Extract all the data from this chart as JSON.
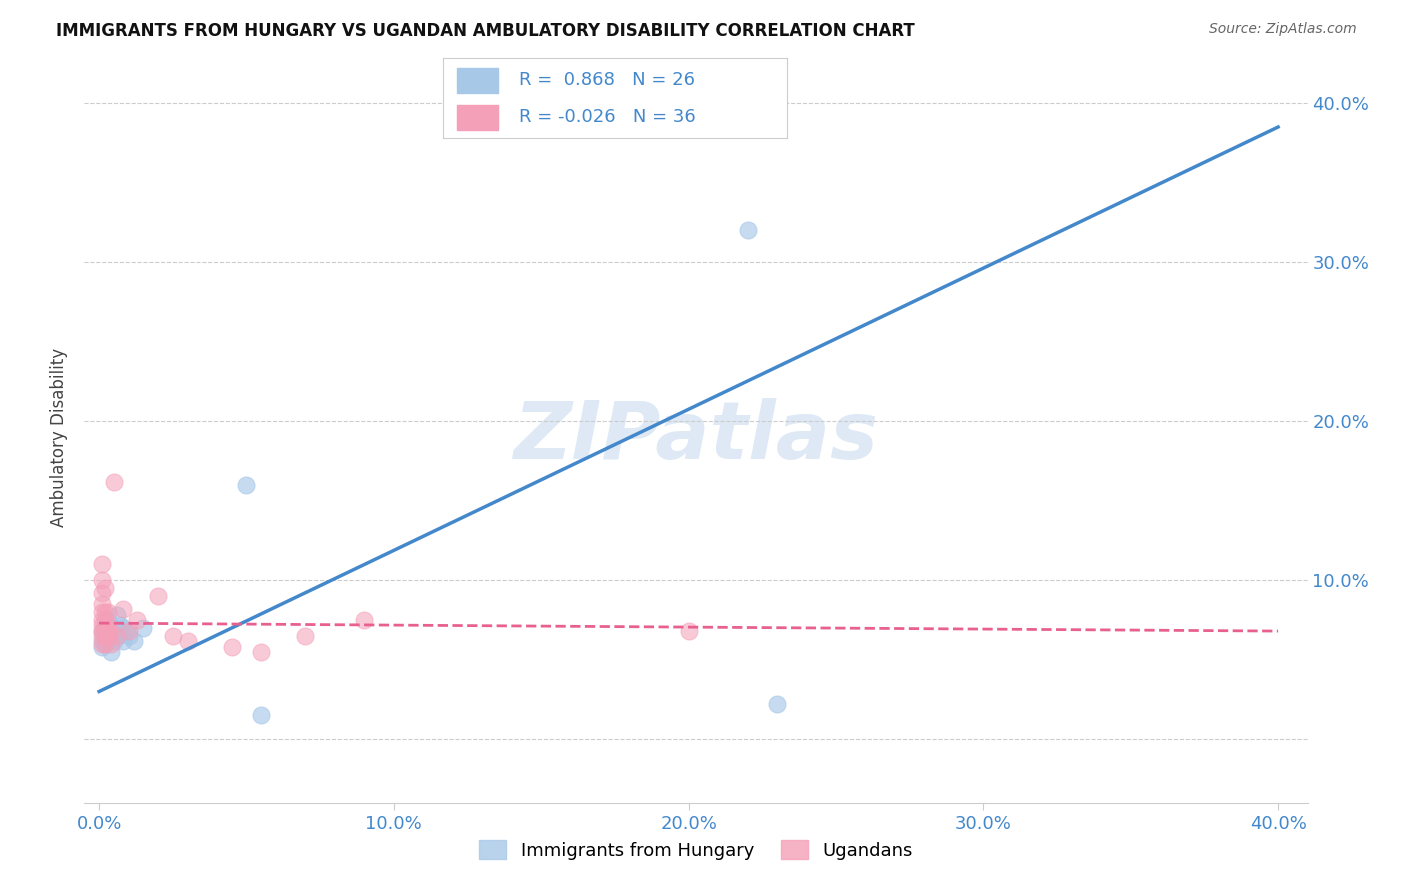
{
  "title": "IMMIGRANTS FROM HUNGARY VS UGANDAN AMBULATORY DISABILITY CORRELATION CHART",
  "source": "Source: ZipAtlas.com",
  "ylabel": "Ambulatory Disability",
  "legend1_label": "Immigrants from Hungary",
  "legend2_label": "Ugandans",
  "R_hungary": 0.868,
  "N_hungary": 26,
  "R_uganda": -0.026,
  "N_uganda": 36,
  "watermark": "ZIPatlas",
  "blue_color": "#a8c8e8",
  "pink_color": "#f4a0b8",
  "blue_line_color": "#4488cc",
  "pink_line_color": "#e86090",
  "blue_line_x0": 0.0,
  "blue_line_y0": 0.03,
  "blue_line_x1": 0.4,
  "blue_line_y1": 0.385,
  "pink_line_x0": 0.0,
  "pink_line_y0": 0.073,
  "pink_line_x1": 0.4,
  "pink_line_y1": 0.068,
  "hungary_x": [
    0.001,
    0.001,
    0.001,
    0.002,
    0.002,
    0.002,
    0.002,
    0.003,
    0.003,
    0.004,
    0.004,
    0.005,
    0.005,
    0.006,
    0.006,
    0.007,
    0.008,
    0.008,
    0.009,
    0.01,
    0.012,
    0.015,
    0.05,
    0.055,
    0.22,
    0.23
  ],
  "hungary_y": [
    0.062,
    0.068,
    0.058,
    0.07,
    0.072,
    0.065,
    0.06,
    0.075,
    0.068,
    0.065,
    0.055,
    0.07,
    0.062,
    0.078,
    0.065,
    0.072,
    0.07,
    0.062,
    0.068,
    0.065,
    0.062,
    0.07,
    0.16,
    0.015,
    0.32,
    0.022
  ],
  "uganda_x": [
    0.001,
    0.001,
    0.001,
    0.001,
    0.001,
    0.001,
    0.001,
    0.001,
    0.001,
    0.001,
    0.002,
    0.002,
    0.002,
    0.002,
    0.002,
    0.002,
    0.002,
    0.003,
    0.003,
    0.003,
    0.003,
    0.004,
    0.004,
    0.005,
    0.006,
    0.008,
    0.01,
    0.013,
    0.02,
    0.025,
    0.03,
    0.045,
    0.055,
    0.07,
    0.09,
    0.2
  ],
  "uganda_y": [
    0.075,
    0.068,
    0.085,
    0.08,
    0.065,
    0.06,
    0.092,
    0.1,
    0.11,
    0.072,
    0.095,
    0.068,
    0.08,
    0.075,
    0.065,
    0.07,
    0.06,
    0.072,
    0.065,
    0.068,
    0.08,
    0.06,
    0.068,
    0.162,
    0.065,
    0.082,
    0.068,
    0.075,
    0.09,
    0.065,
    0.062,
    0.058,
    0.055,
    0.065,
    0.075,
    0.068
  ],
  "xlim_min": -0.005,
  "xlim_max": 0.41,
  "ylim_min": -0.04,
  "ylim_max": 0.42,
  "xticks": [
    0.0,
    0.1,
    0.2,
    0.3,
    0.4
  ],
  "yticks": [
    0.0,
    0.1,
    0.2,
    0.3,
    0.4
  ],
  "grid_color": "#cccccc",
  "tick_color": "#4488cc"
}
